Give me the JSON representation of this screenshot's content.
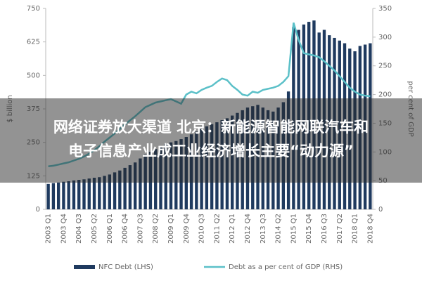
{
  "chart_data": {
    "type": "combo",
    "categories": [
      "2003 Q1",
      null,
      null,
      "2003 Q4",
      null,
      null,
      "2004 Q3",
      null,
      null,
      "2005 Q2",
      null,
      null,
      "2006 Q1",
      null,
      null,
      "2006 Q4",
      null,
      null,
      "2007 Q3",
      null,
      null,
      "2008 Q2",
      null,
      null,
      "2009 Q1",
      null,
      null,
      "2009 Q4",
      null,
      null,
      "2010 Q3",
      null,
      null,
      "2011 Q2",
      null,
      null,
      "2012 Q1",
      null,
      null,
      "2012 Q4",
      null,
      null,
      "2013 Q3",
      null,
      null,
      "2014 Q2",
      null,
      null,
      "2015 Q1",
      null,
      null,
      "2015 Q4",
      null,
      null,
      "2016 Q3",
      null,
      null,
      "2017 Q2",
      null,
      null,
      "2018 Q1",
      null,
      null,
      "2018 Q4"
    ],
    "y_label": "$ billion",
    "y2_label": "per cent of GDP",
    "ylim": [
      0,
      750
    ],
    "yticks": [
      0,
      125,
      250,
      375,
      500,
      625,
      750
    ],
    "y2lim": [
      0,
      350
    ],
    "y2ticks": [
      0,
      50,
      100,
      150,
      200,
      250,
      300,
      350
    ],
    "series": [
      {
        "name": "NFC Debt (LHS)",
        "type": "bar",
        "color": "#1f3a5f",
        "values": [
          95,
          98,
          100,
          103,
          105,
          108,
          110,
          112,
          115,
          118,
          120,
          125,
          130,
          138,
          145,
          155,
          165,
          175,
          190,
          205,
          215,
          225,
          235,
          245,
          250,
          255,
          262,
          270,
          280,
          290,
          300,
          310,
          318,
          325,
          333,
          340,
          350,
          360,
          370,
          380,
          385,
          390,
          380,
          370,
          365,
          380,
          400,
          440,
          680,
          670,
          690,
          700,
          705,
          660,
          670,
          650,
          640,
          630,
          620,
          600,
          590,
          610,
          615,
          620
        ]
      },
      {
        "name": "Debt as a per cent of GDP (RHS)",
        "type": "line",
        "axis": "y2",
        "color": "#5bc0c8",
        "values": [
          75,
          76,
          78,
          80,
          82,
          85,
          88,
          92,
          97,
          103,
          110,
          118,
          125,
          132,
          140,
          148,
          155,
          162,
          170,
          178,
          182,
          186,
          188,
          190,
          192,
          188,
          184,
          200,
          205,
          202,
          208,
          212,
          215,
          222,
          228,
          225,
          215,
          208,
          200,
          198,
          205,
          203,
          208,
          210,
          212,
          215,
          222,
          232,
          325,
          295,
          272,
          270,
          268,
          265,
          258,
          250,
          242,
          232,
          222,
          212,
          205,
          200,
          198,
          197
        ]
      }
    ]
  },
  "banner": {
    "lines": [
      "网络证券放大渠道 北京：新能源智能网联汽车和",
      "电子信息产业成工业经济增长主要“动力源”"
    ]
  }
}
